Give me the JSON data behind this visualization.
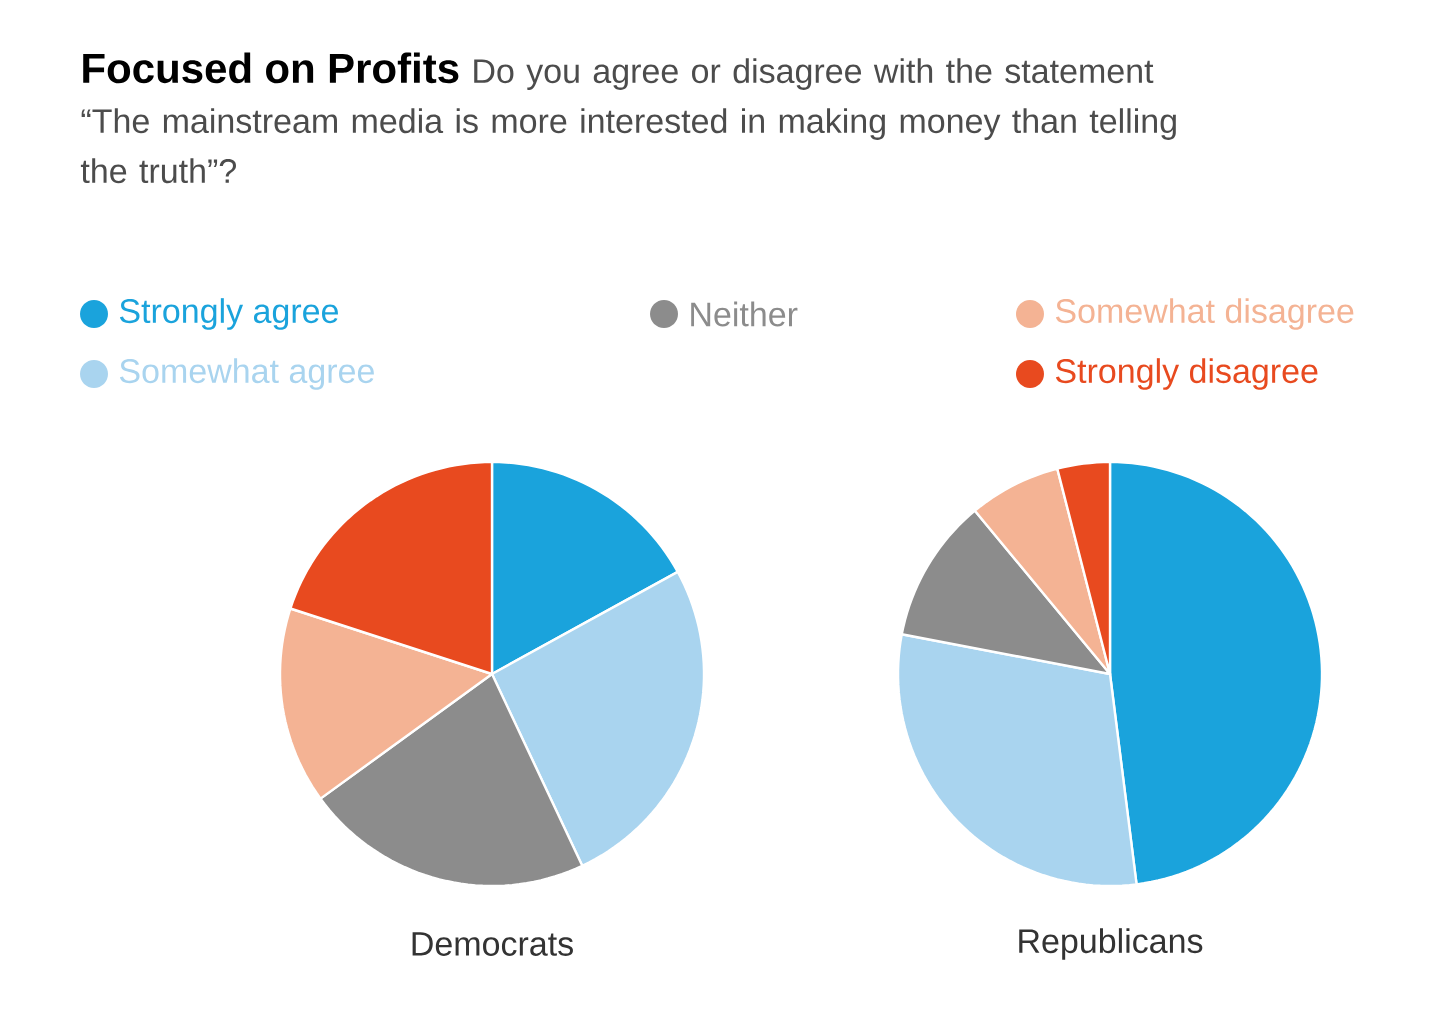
{
  "chart_data": {
    "type": "pie",
    "title": "Focused on Profits",
    "subtitle": "Do you agree or disagree with the statement “The mainstream media is more interested in making money than telling the truth”?",
    "legend": "top",
    "categories": [
      "Strongly agree",
      "Somewhat agree",
      "Neither",
      "Somewhat disagree",
      "Strongly disagree"
    ],
    "colors": [
      "#1aa3dc",
      "#a9d4ef",
      "#8c8c8c",
      "#f4b394",
      "#e84a1f"
    ],
    "series": [
      {
        "name": "Democrats",
        "values": [
          17,
          26,
          22,
          15,
          20
        ]
      },
      {
        "name": "Republicans",
        "values": [
          48,
          30,
          11,
          7,
          4
        ]
      }
    ]
  }
}
